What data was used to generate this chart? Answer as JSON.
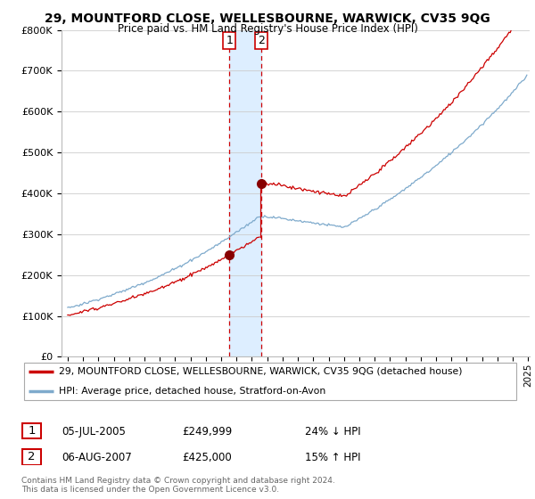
{
  "title": "29, MOUNTFORD CLOSE, WELLESBOURNE, WARWICK, CV35 9QG",
  "subtitle": "Price paid vs. HM Land Registry's House Price Index (HPI)",
  "legend_line1": "29, MOUNTFORD CLOSE, WELLESBOURNE, WARWICK, CV35 9QG (detached house)",
  "legend_line2": "HPI: Average price, detached house, Stratford-on-Avon",
  "transaction1_date": "05-JUL-2005",
  "transaction1_price": "£249,999",
  "transaction1_hpi": "24% ↓ HPI",
  "transaction2_date": "06-AUG-2007",
  "transaction2_price": "£425,000",
  "transaction2_hpi": "15% ↑ HPI",
  "footer": "Contains HM Land Registry data © Crown copyright and database right 2024.\nThis data is licensed under the Open Government Licence v3.0.",
  "hpi_color": "#7eaacc",
  "price_color": "#cc0000",
  "marker_color": "#880000",
  "ylim": [
    0,
    800000
  ],
  "yticks": [
    0,
    100000,
    200000,
    300000,
    400000,
    500000,
    600000,
    700000,
    800000
  ],
  "background_color": "#ffffff",
  "grid_color": "#cccccc",
  "transaction1_x": 2005.54,
  "transaction1_y": 249999,
  "transaction2_x": 2007.62,
  "transaction2_y": 425000,
  "vline_color": "#cc0000",
  "shade_color": "#ddeeff",
  "xlim_left": 1994.6,
  "xlim_right": 2025.1
}
